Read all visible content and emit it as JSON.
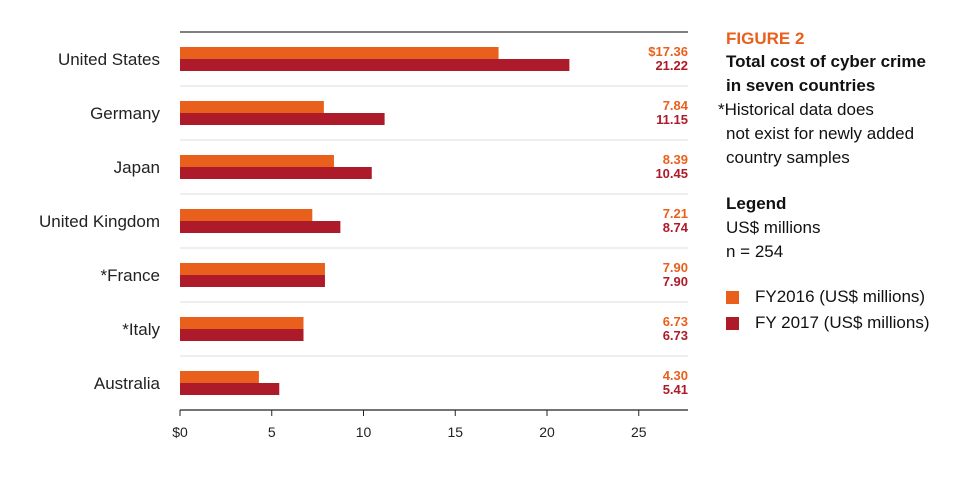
{
  "chart_data": {
    "type": "bar",
    "orientation": "horizontal",
    "categories": [
      "United States",
      "Germany",
      "Japan",
      "United Kingdom",
      "*France",
      "*Italy",
      "Australia"
    ],
    "series": [
      {
        "name": "FY2016 (US$ millions)",
        "color": "#e8601c",
        "values": [
          17.36,
          7.84,
          8.39,
          7.21,
          7.9,
          6.73,
          4.3
        ],
        "labels": [
          "$17.36",
          "7.84",
          "8.39",
          "7.21",
          "7.90",
          "6.73",
          "4.30"
        ]
      },
      {
        "name": "FY 2017 (US$ millions)",
        "color": "#ad1a29",
        "values": [
          21.22,
          11.15,
          10.45,
          8.74,
          7.9,
          6.73,
          5.41
        ],
        "labels": [
          "21.22",
          "11.15",
          "10.45",
          "8.74",
          "7.90",
          "6.73",
          "5.41"
        ]
      }
    ],
    "xlim": [
      0,
      27.8
    ],
    "xticks": [
      0,
      5,
      10,
      15,
      20,
      25
    ],
    "xtick_labels": [
      "$0",
      "5",
      "10",
      "15",
      "20",
      "25"
    ],
    "title": "Total cost of cyber crime in seven countries",
    "xlabel": "",
    "ylabel": "",
    "legend_placement": "right"
  },
  "side": {
    "figure": "FIGURE 2",
    "title_line1": "Total cost of cyber crime",
    "title_line2": "in seven countries",
    "note_line1": "*Historical data does",
    "note_line2": "not exist for newly added",
    "note_line3": "country samples",
    "legend_heading": "Legend",
    "units": "US$ millions",
    "n": "n = 254",
    "legend_2016": "FY2016 (US$ millions)",
    "legend_2017": "FY 2017 (US$ millions)"
  }
}
